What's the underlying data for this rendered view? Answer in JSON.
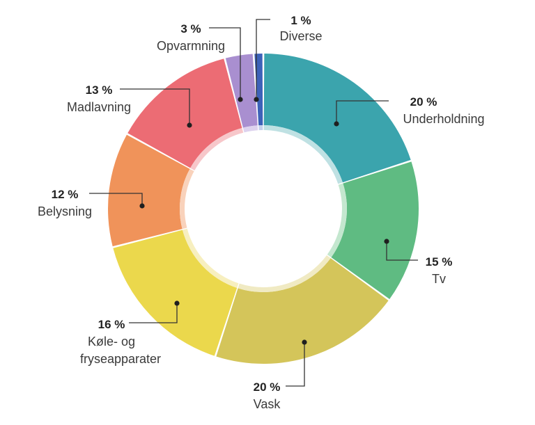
{
  "chart_data": {
    "type": "pie",
    "variant": "donut",
    "start_angle_deg": 0,
    "direction": "clockwise",
    "slices": [
      {
        "percent_label": "20 %",
        "label_lines": [
          "Underholdning"
        ],
        "value": 20,
        "color": "#3ba4ad",
        "inner_color": "#bfe1e3"
      },
      {
        "percent_label": "15 %",
        "label_lines": [
          "Tv"
        ],
        "value": 15,
        "color": "#5fbb82",
        "inner_color": "#c4e7cf"
      },
      {
        "percent_label": "20 %",
        "label_lines": [
          "Vask"
        ],
        "value": 20,
        "color": "#d4c55a",
        "inner_color": "#f0eac3"
      },
      {
        "percent_label": "16 %",
        "label_lines": [
          "Køle- og",
          "fryseapparater"
        ],
        "value": 16,
        "color": "#ebd84c",
        "inner_color": "#f7efbf"
      },
      {
        "percent_label": "12 %",
        "label_lines": [
          "Belysning"
        ],
        "value": 12,
        "color": "#f0935a",
        "inner_color": "#f9d2bb"
      },
      {
        "percent_label": "13 %",
        "label_lines": [
          "Madlavning"
        ],
        "value": 13,
        "color": "#ec6c74",
        "inner_color": "#f7c7ca"
      },
      {
        "percent_label": "3 %",
        "label_lines": [
          "Opvarmning"
        ],
        "value": 3,
        "color": "#a98fd0",
        "inner_color": "#ddd2ee"
      },
      {
        "percent_label": "1 %",
        "label_lines": [
          "Diverse"
        ],
        "value": 1,
        "color": "#3d62b8",
        "inner_color": "#c6d1ec"
      }
    ]
  }
}
